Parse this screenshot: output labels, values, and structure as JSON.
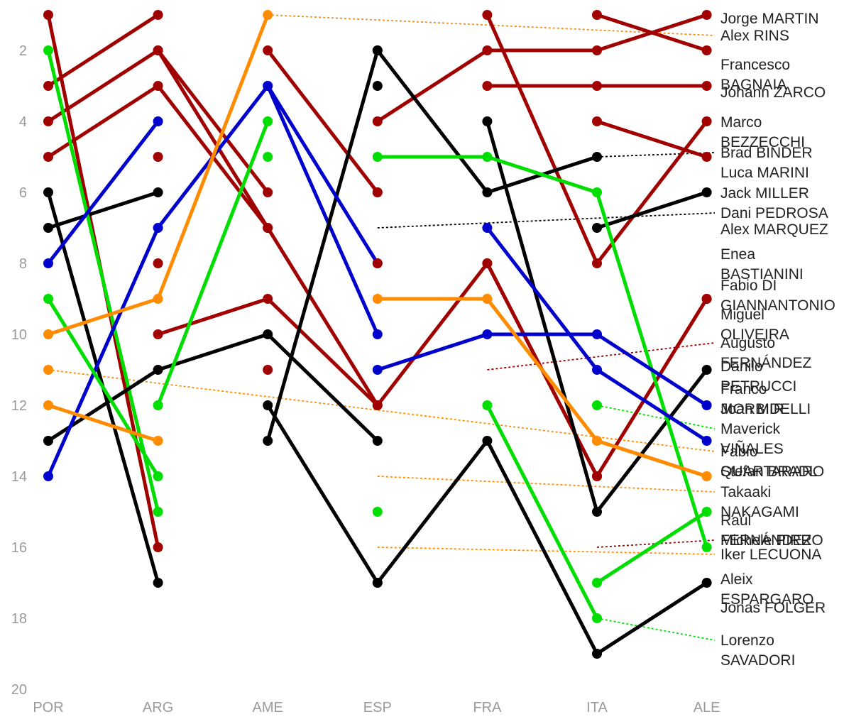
{
  "chart_data": {
    "type": "line",
    "title": "",
    "xlabel": "",
    "ylabel": "",
    "categories": [
      "POR",
      "ARG",
      "AME",
      "ESP",
      "FRA",
      "ITA",
      "ALE"
    ],
    "y_ticks": [
      2,
      4,
      6,
      8,
      10,
      12,
      14,
      16,
      18,
      20
    ],
    "ylim": [
      0.5,
      20
    ],
    "y_inverted": true,
    "grid": false,
    "legend": "none",
    "colors": {
      "red": "#a00000",
      "green": "#00dd00",
      "blue": "#0000cc",
      "orange": "#ff8c00",
      "black": "#000000"
    },
    "series": [
      {
        "name": "Jorge MARTIN",
        "color": "red",
        "label": [
          "Jorge MARTIN"
        ],
        "values": [
          5,
          3,
          7,
          12,
          8,
          14,
          9
        ]
      },
      {
        "name": "Alex RINS",
        "color": "orange",
        "label": [
          "Alex RINS"
        ],
        "values": [
          11,
          null,
          null,
          null,
          null,
          null,
          12
        ]
      },
      {
        "name": "Francesco BAGNAIA",
        "color": "red",
        "label": [
          "Francesco",
          "BAGNAIA"
        ],
        "values": [
          1,
          16,
          null,
          null,
          null,
          null,
          null
        ]
      },
      {
        "name": "Johann ZARCO",
        "color": "red",
        "label": [
          "Johann ZARCO"
        ],
        "values": [
          4,
          2,
          6,
          null,
          null,
          null,
          null
        ]
      },
      {
        "name": "Marco BEZZECCHI",
        "color": "red",
        "label": [
          "Marco",
          "BEZZECCHI"
        ],
        "values": [
          3,
          1,
          null,
          null,
          null,
          null,
          null
        ]
      },
      {
        "name": "Brad BINDER",
        "color": "black",
        "label": [
          "Brad BINDER"
        ],
        "values": [
          6,
          17,
          null,
          null,
          null,
          null,
          null
        ]
      },
      {
        "name": "Luca MARINI",
        "color": "red",
        "label": [
          "Luca MARINI"
        ],
        "values": [
          null,
          10,
          9,
          12,
          null,
          null,
          null
        ]
      },
      {
        "name": "Jack MILLER",
        "color": "black",
        "label": [
          "Jack MILLER"
        ],
        "values": [
          7,
          6,
          null,
          null,
          null,
          null,
          null
        ]
      },
      {
        "name": "Dani PEDROSA",
        "color": "black",
        "label": [
          "Dani PEDROSA"
        ],
        "values": [
          null,
          null,
          null,
          null,
          null,
          null,
          null
        ]
      },
      {
        "name": "Alex MARQUEZ",
        "color": "red",
        "label": [
          "Alex MARQUEZ"
        ],
        "values": [
          null,
          2,
          7,
          null,
          null,
          null,
          null
        ]
      },
      {
        "name": "Enea BASTIANINI",
        "color": "red",
        "label": [
          "Enea",
          "BASTIANINI"
        ],
        "values": [
          null,
          8,
          null,
          null,
          null,
          null,
          null
        ]
      },
      {
        "name": "Fabio DI GIANNANTONIO",
        "color": "red",
        "label": [
          "Fabio DI",
          "GIANNANTONIO"
        ],
        "values": [
          null,
          null,
          2,
          6,
          null,
          null,
          null
        ]
      },
      {
        "name": "Miguel OLIVEIRA",
        "color": "green",
        "label": [
          "Miguel",
          "OLIVEIRA"
        ],
        "values": [
          2,
          15,
          null,
          null,
          null,
          null,
          null
        ]
      },
      {
        "name": "Augusto FERNÁNDEZ",
        "color": "red",
        "label": [
          "Augusto",
          "FERNÁNDEZ"
        ],
        "values": [
          null,
          null,
          null,
          4,
          2,
          2,
          1
        ]
      },
      {
        "name": "Danilo PETRUCCI",
        "color": "black",
        "label": [
          "Danilo",
          "PETRUCCI"
        ],
        "values": [
          13,
          11,
          10,
          13,
          null,
          null,
          null
        ]
      },
      {
        "name": "Franco MORBIDELLI",
        "color": "blue",
        "label": [
          "Franco",
          "MORBIDELLI"
        ],
        "values": [
          8,
          4,
          null,
          null,
          null,
          null,
          null
        ]
      },
      {
        "name": "Joan MIR",
        "color": "blue",
        "label": [
          "Joan MIR"
        ],
        "values": [
          14,
          7,
          3,
          10,
          null,
          null,
          null
        ]
      },
      {
        "name": "Maverick VIÑALES",
        "color": "green",
        "label": [
          "Maverick",
          "VIÑALES"
        ],
        "values": [
          9,
          14,
          null,
          null,
          null,
          null,
          null
        ]
      },
      {
        "name": "Fabio QUARTARARO",
        "color": "orange",
        "label": [
          "Fabio",
          "QUARTARARO"
        ],
        "values": [
          10,
          9,
          1,
          null,
          null,
          null,
          null
        ]
      },
      {
        "name": "Stefan BRADL",
        "color": "orange",
        "label": [
          "Stefan BRADL"
        ],
        "values": [
          12,
          13,
          null,
          null,
          null,
          null,
          null
        ]
      },
      {
        "name": "Takaaki NAKAGAMI",
        "color": "orange",
        "label": [
          "Takaaki",
          "NAKAGAMI"
        ],
        "values": [
          null,
          null,
          null,
          9,
          9,
          13,
          14
        ]
      },
      {
        "name": "Raúl FERNÁNDEZ",
        "color": "green",
        "label": [
          "Raúl",
          "FERNÁNDEZ"
        ],
        "values": [
          null,
          12,
          4,
          null,
          null,
          null,
          null
        ]
      },
      {
        "name": "Michele PIRRO",
        "color": "red",
        "label": [
          "Michele PIRRO"
        ],
        "values": [
          null,
          null,
          null,
          null,
          null,
          null,
          null
        ]
      },
      {
        "name": "Iker LECUONA",
        "color": "orange",
        "label": [
          "Iker LECUONA"
        ],
        "values": [
          null,
          null,
          null,
          null,
          null,
          null,
          null
        ]
      },
      {
        "name": "Aleix ESPARGARO",
        "color": "black",
        "label": [
          "Aleix",
          "ESPARGARO"
        ],
        "values": [
          null,
          null,
          12,
          17,
          null,
          null,
          null
        ]
      },
      {
        "name": "Jonas FOLGER",
        "color": "black",
        "label": [
          "Jonas FOLGER"
        ],
        "values": [
          null,
          null,
          null,
          null,
          null,
          null,
          null
        ]
      },
      {
        "name": "Lorenzo SAVADORI",
        "color": "green",
        "label": [
          "Lorenzo",
          "SAVADORI"
        ],
        "values": [
          null,
          null,
          null,
          null,
          null,
          null,
          null
        ]
      }
    ],
    "extra_segments": [
      {
        "color": "red",
        "values": [
          null,
          null,
          null,
          6,
          null,
          null,
          null
        ]
      },
      {
        "color": "red",
        "values": [
          null,
          null,
          null,
          null,
          3,
          3,
          3
        ]
      },
      {
        "color": "red",
        "values": [
          null,
          null,
          null,
          null,
          1,
          8,
          4
        ]
      },
      {
        "color": "red",
        "values": [
          null,
          null,
          null,
          null,
          null,
          1,
          2
        ]
      },
      {
        "color": "red",
        "values": [
          null,
          null,
          null,
          null,
          null,
          4,
          5
        ]
      },
      {
        "color": "red",
        "values": [
          null,
          null,
          null,
          null,
          8,
          14,
          null
        ]
      },
      {
        "color": "red",
        "values": [
          null,
          null,
          null,
          null,
          null,
          null,
          9
        ]
      },
      {
        "color": "black",
        "values": [
          null,
          null,
          null,
          2,
          6,
          5,
          null
        ]
      },
      {
        "color": "black",
        "values": [
          null,
          null,
          null,
          null,
          4,
          15,
          11
        ]
      },
      {
        "color": "black",
        "values": [
          null,
          null,
          13,
          2,
          null,
          null,
          null
        ]
      },
      {
        "color": "black",
        "values": [
          null,
          null,
          null,
          17,
          13,
          19,
          17
        ]
      },
      {
        "color": "black",
        "values": [
          null,
          null,
          null,
          null,
          null,
          7,
          6
        ]
      },
      {
        "color": "green",
        "values": [
          null,
          null,
          5,
          null,
          null,
          null,
          null
        ]
      },
      {
        "color": "green",
        "values": [
          null,
          null,
          null,
          5,
          5,
          6,
          16
        ]
      },
      {
        "color": "green",
        "values": [
          null,
          null,
          null,
          null,
          12,
          18,
          null
        ]
      },
      {
        "color": "green",
        "values": [
          null,
          null,
          null,
          null,
          null,
          17,
          15
        ]
      },
      {
        "color": "blue",
        "values": [
          null,
          null,
          3,
          8,
          null,
          null,
          null
        ]
      },
      {
        "color": "blue",
        "values": [
          null,
          null,
          null,
          11,
          10,
          10,
          12
        ]
      },
      {
        "color": "blue",
        "values": [
          null,
          null,
          null,
          null,
          7,
          11,
          13
        ]
      },
      {
        "color": "orange",
        "values": [
          null,
          null,
          null,
          null,
          9,
          13,
          14
        ]
      },
      {
        "color": "red",
        "values": [
          null,
          null,
          11,
          null,
          null,
          null,
          null
        ]
      },
      {
        "color": "red",
        "values": [
          null,
          5,
          null,
          null,
          null,
          null,
          null
        ]
      },
      {
        "color": "black",
        "values": [
          null,
          null,
          null,
          3,
          null,
          null,
          null
        ]
      },
      {
        "color": "red",
        "values": [
          null,
          null,
          null,
          8,
          null,
          null,
          null
        ]
      },
      {
        "color": "green",
        "values": [
          null,
          null,
          null,
          15,
          null,
          null,
          null
        ]
      },
      {
        "color": "green",
        "values": [
          null,
          null,
          null,
          null,
          null,
          12,
          null
        ]
      }
    ],
    "dotted_links": [
      {
        "color": "orange",
        "from": [
          2,
          1
        ],
        "to_label": 1
      },
      {
        "color": "orange",
        "from": [
          0,
          11
        ],
        "to_label": 18
      },
      {
        "color": "black",
        "from": [
          5,
          5
        ],
        "to_label": 5
      },
      {
        "color": "black",
        "from": [
          3,
          7
        ],
        "to_label": 8
      },
      {
        "color": "red",
        "from": [
          4,
          11
        ],
        "to_label": 13
      },
      {
        "color": "orange",
        "from": [
          3,
          14
        ],
        "to_label": 20
      },
      {
        "color": "orange",
        "from": [
          3,
          16
        ],
        "to_label": 23
      },
      {
        "color": "red",
        "from": [
          5,
          16
        ],
        "to_label": 22
      },
      {
        "color": "green",
        "from": [
          5,
          12
        ],
        "to_label": 17
      },
      {
        "color": "green",
        "from": [
          5,
          18
        ],
        "to_label": 26
      }
    ]
  }
}
